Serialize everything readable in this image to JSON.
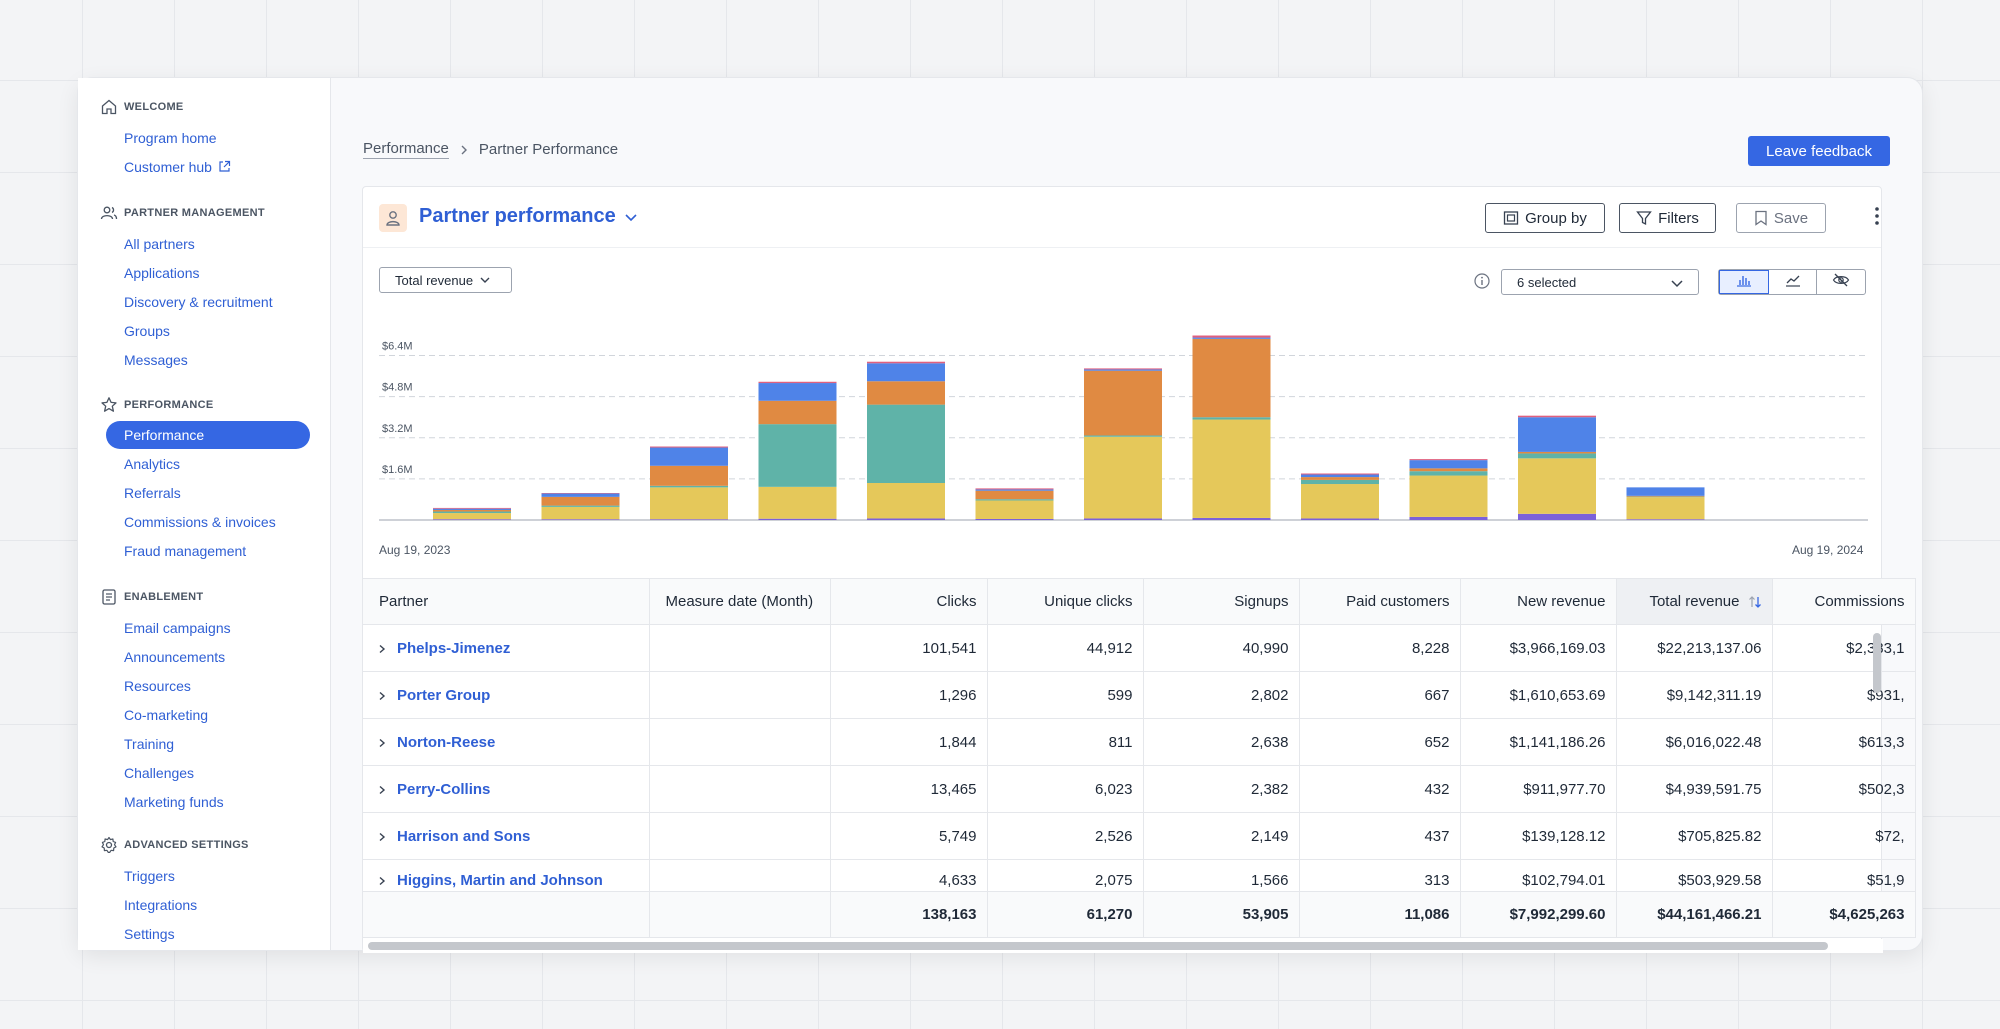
{
  "sidebar": {
    "sections": [
      {
        "title": "WELCOME",
        "icon": "home-icon",
        "items": [
          {
            "label": "Program home"
          },
          {
            "label": "Customer hub",
            "external": true
          }
        ]
      },
      {
        "title": "PARTNER MANAGEMENT",
        "icon": "users-icon",
        "items": [
          {
            "label": "All partners"
          },
          {
            "label": "Applications"
          },
          {
            "label": "Discovery & recruitment"
          },
          {
            "label": "Groups"
          },
          {
            "label": "Messages"
          }
        ]
      },
      {
        "title": "PERFORMANCE",
        "icon": "star-icon",
        "items": [
          {
            "label": "Performance",
            "active": true
          },
          {
            "label": "Analytics"
          },
          {
            "label": "Referrals"
          },
          {
            "label": "Commissions & invoices"
          },
          {
            "label": "Fraud management"
          }
        ]
      },
      {
        "title": "ENABLEMENT",
        "icon": "document-icon",
        "items": [
          {
            "label": "Email campaigns"
          },
          {
            "label": "Announcements"
          },
          {
            "label": "Resources"
          },
          {
            "label": "Co-marketing"
          },
          {
            "label": "Training"
          },
          {
            "label": "Challenges"
          },
          {
            "label": "Marketing funds"
          }
        ]
      },
      {
        "title": "ADVANCED SETTINGS",
        "icon": "gear-icon",
        "items": [
          {
            "label": "Triggers"
          },
          {
            "label": "Integrations"
          },
          {
            "label": "Settings"
          }
        ]
      }
    ]
  },
  "breadcrumb": {
    "parent": "Performance",
    "current": "Partner Performance"
  },
  "feedback_label": "Leave feedback",
  "report": {
    "title": "Partner performance",
    "group_by_label": "Group by",
    "filters_label": "Filters",
    "save_label": "Save",
    "metric_label": "Total revenue",
    "series_label": "6 selected"
  },
  "colors": {
    "accent": "#3567e3",
    "series": [
      "#7b61d9",
      "#e5c85a",
      "#5fb3a8",
      "#e08a42",
      "#4f83e8",
      "#e0607e"
    ]
  },
  "chart_data": {
    "type": "bar",
    "stacked": true,
    "x_start_label": "Aug 19, 2023",
    "x_end_label": "Aug 19, 2024",
    "y_ticks": [
      "$1.6M",
      "$3.2M",
      "$4.8M",
      "$6.4M"
    ],
    "ylim": [
      0,
      7200000
    ],
    "grid": true,
    "series": [
      {
        "values": [
          30000,
          30000,
          30000,
          50000,
          60000,
          40000,
          60000,
          80000,
          60000,
          120000,
          240000,
          30000
        ]
      },
      {
        "values": [
          240000,
          480000,
          1240000,
          1240000,
          1380000,
          720000,
          3180000,
          3830000,
          1340000,
          1610000,
          2160000,
          860000
        ]
      },
      {
        "values": [
          60000,
          50000,
          60000,
          2440000,
          3050000,
          50000,
          50000,
          90000,
          160000,
          170000,
          190000,
          20000
        ]
      },
      {
        "values": [
          60000,
          340000,
          780000,
          910000,
          910000,
          330000,
          2520000,
          3050000,
          110000,
          110000,
          60000,
          30000
        ]
      },
      {
        "values": [
          50000,
          130000,
          710000,
          690000,
          700000,
          50000,
          50000,
          50000,
          100000,
          320000,
          1350000,
          330000
        ]
      },
      {
        "values": [
          30000,
          20000,
          40000,
          50000,
          60000,
          40000,
          40000,
          80000,
          40000,
          40000,
          60000,
          0
        ]
      }
    ]
  },
  "table": {
    "columns": [
      "Partner",
      "Measure date (Month)",
      "Clicks",
      "Unique clicks",
      "Signups",
      "Paid customers",
      "New revenue",
      "Total revenue",
      "Commissions"
    ],
    "rows": [
      [
        "Phelps-Jimenez",
        "",
        "101,541",
        "44,912",
        "40,990",
        "8,228",
        "$3,966,169.03",
        "$22,213,137.06",
        "$2,383,1"
      ],
      [
        "Porter Group",
        "",
        "1,296",
        "599",
        "2,802",
        "667",
        "$1,610,653.69",
        "$9,142,311.19",
        "$931,"
      ],
      [
        "Norton-Reese",
        "",
        "1,844",
        "811",
        "2,638",
        "652",
        "$1,141,186.26",
        "$6,016,022.48",
        "$613,3"
      ],
      [
        "Perry-Collins",
        "",
        "13,465",
        "6,023",
        "2,382",
        "432",
        "$911,977.70",
        "$4,939,591.75",
        "$502,3"
      ],
      [
        "Harrison and Sons",
        "",
        "5,749",
        "2,526",
        "2,149",
        "437",
        "$139,128.12",
        "$705,825.82",
        "$72,"
      ],
      [
        "Higgins, Martin and Johnson",
        "",
        "4,633",
        "2,075",
        "1,566",
        "313",
        "$102,794.01",
        "$503,929.58",
        "$51,9"
      ]
    ],
    "totals": [
      "",
      "",
      "138,163",
      "61,270",
      "53,905",
      "11,086",
      "$7,992,299.60",
      "$44,161,466.21",
      "$4,625,263"
    ]
  }
}
